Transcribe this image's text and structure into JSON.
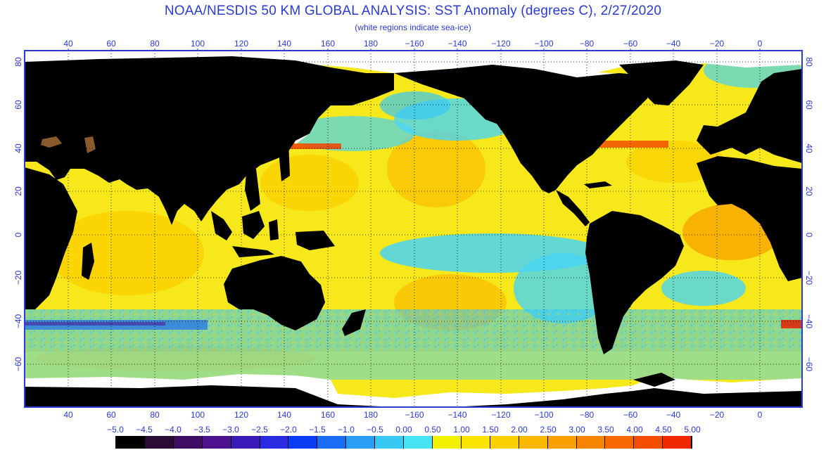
{
  "header": {
    "title": "NOAA/NESDIS 50 KM GLOBAL ANALYSIS: SST Anomaly (degrees C), 2/27/2020",
    "subtitle": "(white regions indicate sea-ice)"
  },
  "map": {
    "longitude_labels": [
      "40",
      "60",
      "80",
      "100",
      "120",
      "140",
      "160",
      "180",
      "−160",
      "−140",
      "−120",
      "−100",
      "−80",
      "−60",
      "−40",
      "−20",
      "0"
    ],
    "latitude_labels": [
      "80",
      "60",
      "40",
      "20",
      "0",
      "−20",
      "−40",
      "−60"
    ],
    "colors": {
      "land": "#000000",
      "sea_ice": "#ffffff",
      "frame": "#2a3ad6",
      "grid": "#000000"
    }
  },
  "legend": {
    "labels": [
      "−5.0",
      "−4.5",
      "−4.0",
      "−3.5",
      "−3.0",
      "−2.5",
      "−2.0",
      "−1.5",
      "−1.0",
      "−0.5",
      "0.00",
      "0.50",
      "1.00",
      "1.50",
      "2.00",
      "2.50",
      "3.00",
      "3.50",
      "4.00",
      "4.50",
      "5.00"
    ],
    "colors": [
      "#000000",
      "#2c0a36",
      "#3f0c63",
      "#4e1290",
      "#3a1ab8",
      "#2a2ae0",
      "#0a3cf6",
      "#1a6cf4",
      "#2a9ef4",
      "#38c8f4",
      "#48e4f4",
      "#f2f200",
      "#fbe400",
      "#fbd000",
      "#fbb800",
      "#f8a000",
      "#f78400",
      "#f66800",
      "#f44c00",
      "#f02800",
      "#e00000"
    ]
  }
}
